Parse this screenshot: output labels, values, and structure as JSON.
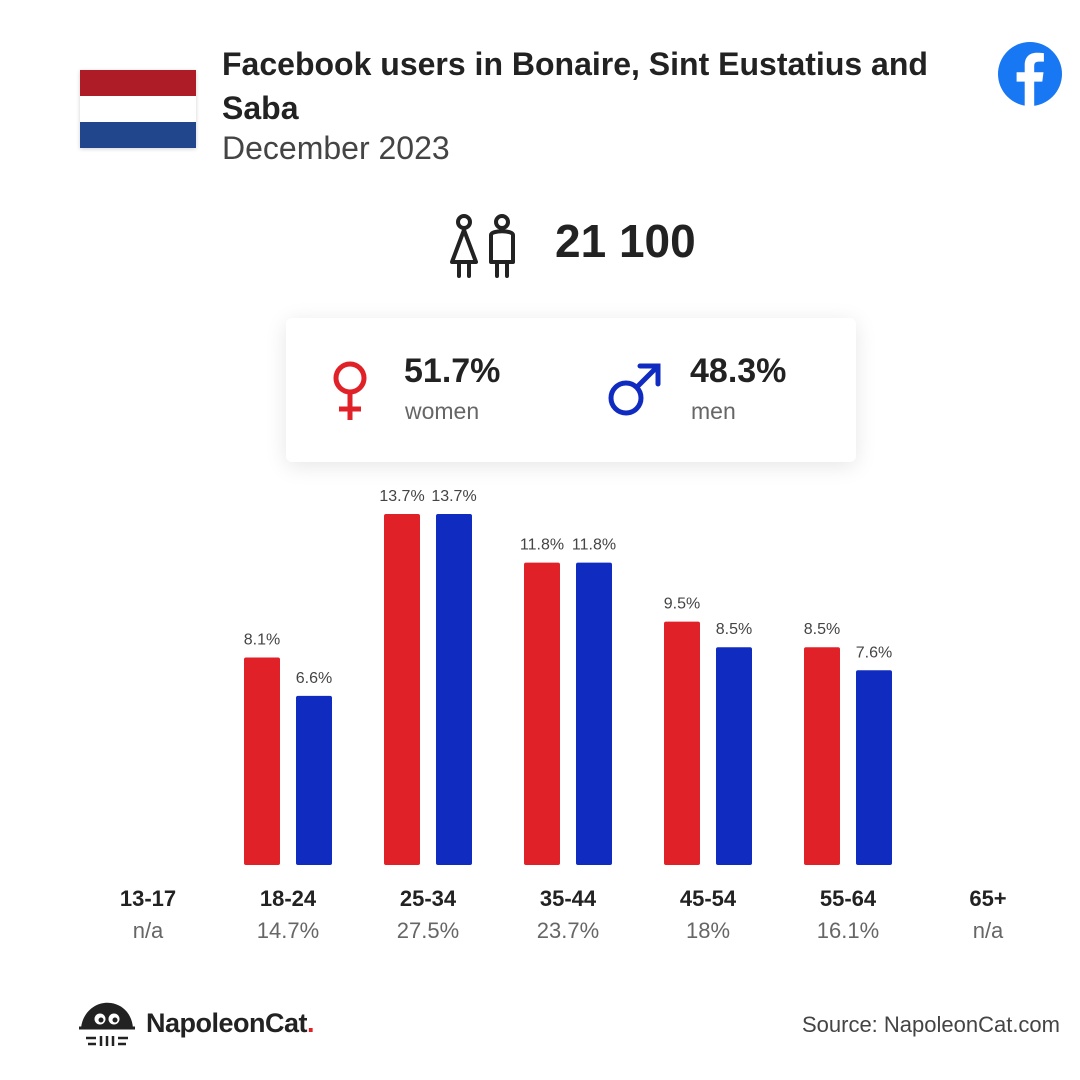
{
  "header": {
    "title": "Facebook users in Bonaire, Sint Eustatius and Saba",
    "subtitle": "December 2023"
  },
  "flag": {
    "icon": "netherlands-flag-icon",
    "colors": [
      "#AE1C28",
      "#FFFFFF",
      "#21468B"
    ]
  },
  "platform_icon": "facebook-icon",
  "total": {
    "icon": "users-icon",
    "value": "21 100"
  },
  "gender": {
    "women": {
      "icon": "female-icon",
      "pct": "51.7%",
      "label": "women",
      "color": "#E02128"
    },
    "men": {
      "icon": "male-icon",
      "pct": "48.3%",
      "label": "men",
      "color": "#102BC0"
    }
  },
  "chart_data": {
    "type": "bar",
    "categories": [
      "13-17",
      "18-24",
      "25-34",
      "35-44",
      "45-54",
      "55-64",
      "65+"
    ],
    "category_totals": [
      "n/a",
      "14.7%",
      "27.5%",
      "23.7%",
      "18%",
      "16.1%",
      "n/a"
    ],
    "series": [
      {
        "name": "women",
        "color": "#E02128",
        "values": [
          null,
          8.1,
          13.7,
          11.8,
          9.5,
          8.5,
          null
        ],
        "labels": [
          "",
          "8.1%",
          "13.7%",
          "11.8%",
          "9.5%",
          "8.5%",
          ""
        ]
      },
      {
        "name": "men",
        "color": "#102BC0",
        "values": [
          null,
          6.6,
          13.7,
          11.8,
          8.5,
          7.6,
          null
        ],
        "labels": [
          "",
          "6.6%",
          "13.7%",
          "11.8%",
          "8.5%",
          "7.6%",
          ""
        ]
      }
    ],
    "ylim": [
      0,
      13.7
    ],
    "grid": false
  },
  "footer": {
    "logo_icon": "napoleoncat-logo-icon",
    "brand": "NapoleonCat",
    "brand_dot": ".",
    "source": "Source: NapoleonCat.com"
  }
}
